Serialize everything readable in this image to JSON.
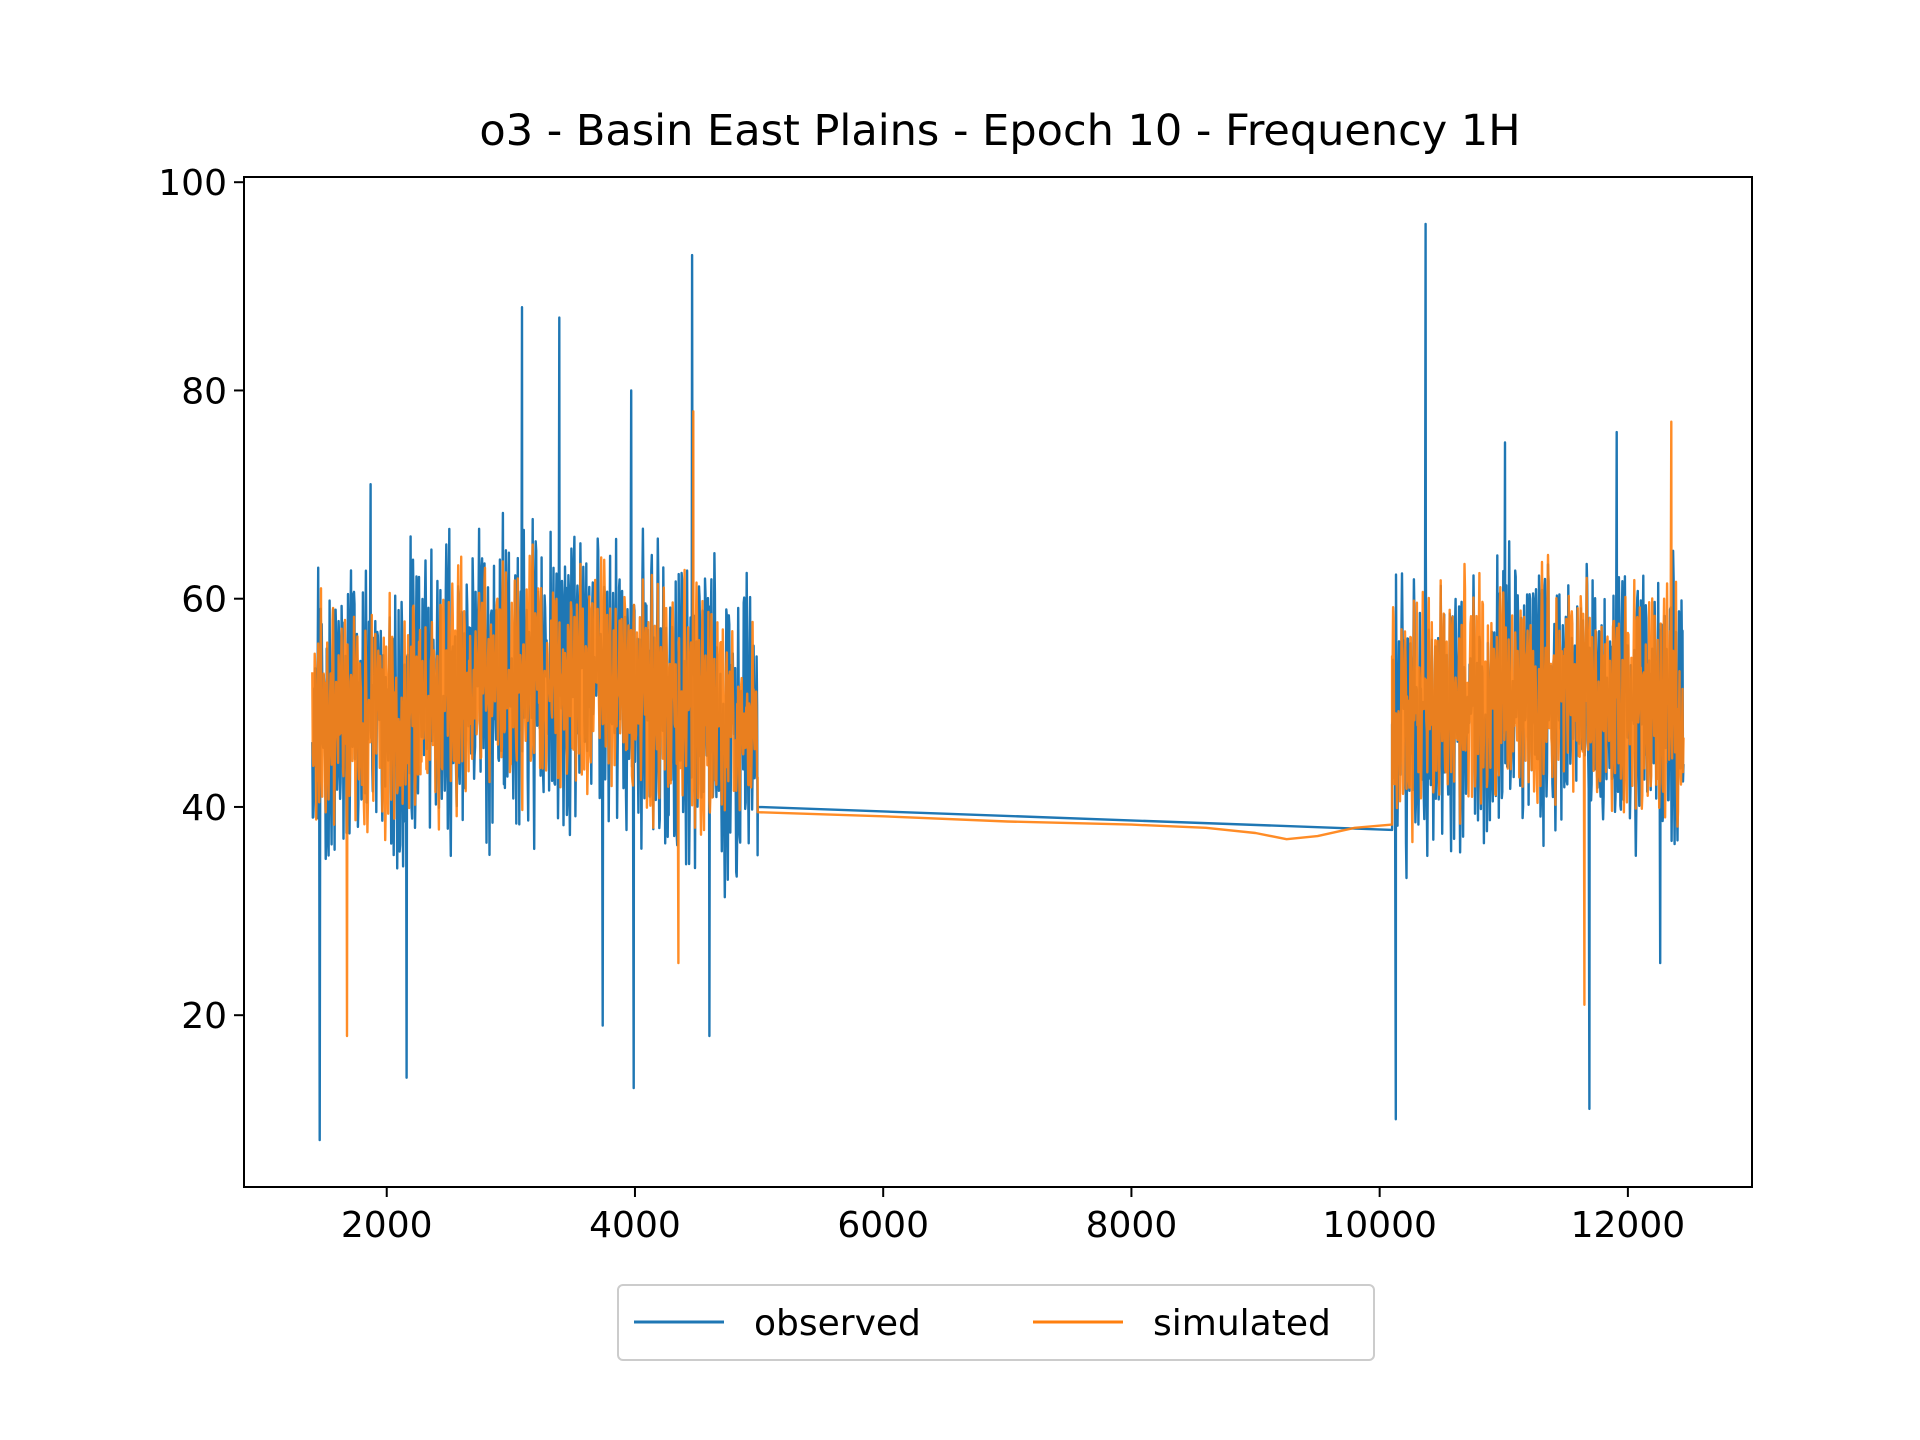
{
  "chart_data": {
    "type": "line",
    "title": "o3 - Basin East Plains - Epoch 10 - Frequency 1H",
    "xlabel": "",
    "ylabel": "",
    "xlim": [
      850,
      13000
    ],
    "ylim": [
      3.5,
      100.5
    ],
    "xticks": [
      2000,
      4000,
      6000,
      8000,
      10000,
      12000
    ],
    "yticks": [
      20,
      40,
      60,
      80,
      100
    ],
    "grid": false,
    "legend_position": "bottom-center",
    "segments": [
      {
        "x_start": 1400,
        "x_end": 4990,
        "observed_center": 50,
        "observed_amplitude": 19,
        "simulated_center": 50,
        "simulated_amplitude": 14
      },
      {
        "x_start": 10100,
        "x_end": 12450,
        "observed_center": 49,
        "observed_amplitude": 17,
        "simulated_center": 49,
        "simulated_amplitude": 14
      }
    ],
    "series": [
      {
        "name": "observed",
        "color": "#1f77b4",
        "gap_line": [
          [
            4990,
            40
          ],
          [
            10100,
            37.8
          ]
        ],
        "peaks": [
          [
            1460,
            8
          ],
          [
            1870,
            71
          ],
          [
            2160,
            14
          ],
          [
            3090,
            88
          ],
          [
            3390,
            87
          ],
          [
            3740,
            19
          ],
          [
            3970,
            80
          ],
          [
            3990,
            13
          ],
          [
            4460,
            93
          ],
          [
            4600,
            18
          ],
          [
            10130,
            10
          ],
          [
            10370,
            96
          ],
          [
            11010,
            75
          ],
          [
            11690,
            11
          ],
          [
            11910,
            76
          ],
          [
            12260,
            25
          ]
        ]
      },
      {
        "name": "simulated",
        "color": "#ff7f0e",
        "gap_line": [
          [
            4990,
            39.5
          ],
          [
            6000,
            39.1
          ],
          [
            7000,
            38.6
          ],
          [
            8000,
            38.3
          ],
          [
            8600,
            38.0
          ],
          [
            9000,
            37.5
          ],
          [
            9250,
            36.9
          ],
          [
            9500,
            37.2
          ],
          [
            9800,
            38.0
          ],
          [
            10100,
            38.3
          ]
        ],
        "peaks": [
          [
            1470,
            61
          ],
          [
            1680,
            18
          ],
          [
            4470,
            78
          ],
          [
            4350,
            25
          ],
          [
            11650,
            21
          ],
          [
            12350,
            77
          ]
        ]
      }
    ]
  }
}
